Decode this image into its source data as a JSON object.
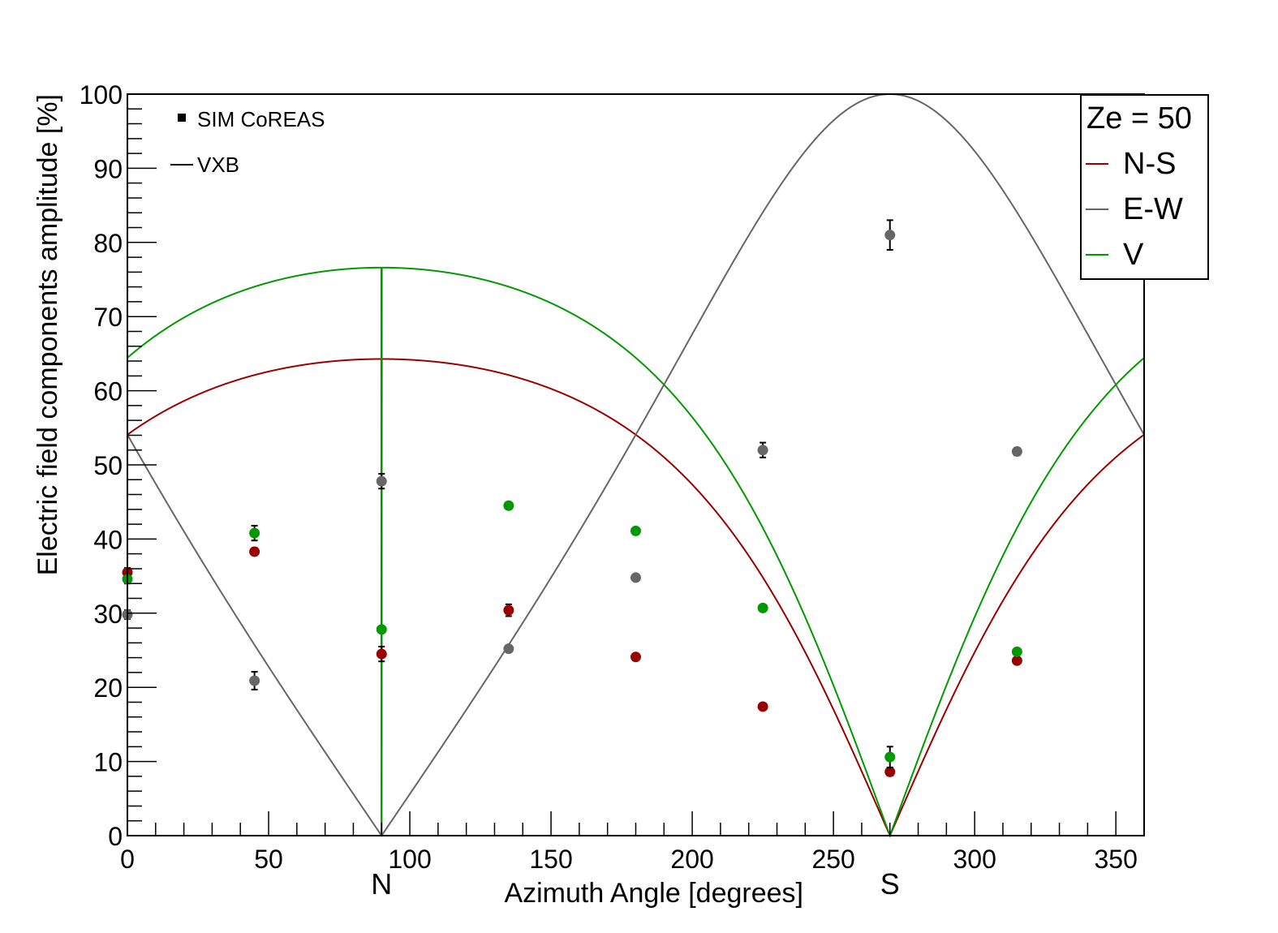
{
  "chart_data": {
    "type": "scatter",
    "xlabel": "Azimuth Angle [degrees]",
    "ylabel": "Electric field components amplitude [%]",
    "xlim": [
      0,
      360
    ],
    "ylim": [
      0,
      100
    ],
    "x_ticks": [
      0,
      50,
      100,
      150,
      200,
      250,
      300,
      350
    ],
    "y_ticks": [
      0,
      10,
      20,
      30,
      40,
      50,
      60,
      70,
      80,
      90,
      100
    ],
    "x_minor_step": 10,
    "y_minor_step": 2,
    "grid": false,
    "direction_labels": [
      {
        "x": 90,
        "label": "N"
      },
      {
        "x": 270,
        "label": "S"
      }
    ],
    "marker_legend": {
      "placement": "top-left",
      "points_label": "SIM CoREAS",
      "line_label": "VXB"
    },
    "legend": {
      "placement": "top-right",
      "title": "Ze = 50",
      "entries": [
        "N-S",
        "E-W",
        "V"
      ]
    },
    "colors": {
      "ns": "#990000",
      "ew": "#666666",
      "v": "#009900"
    },
    "model": {
      "zenith_deg": 50,
      "b_field_azimuth_deg": 90,
      "b_field_zenith_deg": 50,
      "note_hidden": ""
    },
    "series": [
      {
        "name": "N-S",
        "color_key": "ns",
        "points": [
          {
            "x": 0,
            "y": 35.5,
            "err": 0.6
          },
          {
            "x": 45,
            "y": 38.3,
            "err": 0.5
          },
          {
            "x": 90,
            "y": 24.5,
            "err": 1.0
          },
          {
            "x": 135,
            "y": 30.4,
            "err": 0.8
          },
          {
            "x": 180,
            "y": 24.1,
            "err": 0.4
          },
          {
            "x": 225,
            "y": 17.4,
            "err": 0.4
          },
          {
            "x": 270,
            "y": 8.6,
            "err": 0.5
          },
          {
            "x": 315,
            "y": 23.6,
            "err": 0.4
          }
        ]
      },
      {
        "name": "E-W",
        "color_key": "ew",
        "points": [
          {
            "x": 0,
            "y": 29.8,
            "err": 0.6
          },
          {
            "x": 45,
            "y": 20.9,
            "err": 1.2
          },
          {
            "x": 90,
            "y": 47.8,
            "err": 1.0
          },
          {
            "x": 135,
            "y": 25.2,
            "err": 0.4
          },
          {
            "x": 180,
            "y": 34.8,
            "err": 0.4
          },
          {
            "x": 225,
            "y": 52.0,
            "err": 1.0
          },
          {
            "x": 270,
            "y": 81.0,
            "err": 2.0
          },
          {
            "x": 315,
            "y": 51.8,
            "err": 0.5
          }
        ]
      },
      {
        "name": "V",
        "color_key": "v",
        "points": [
          {
            "x": 0,
            "y": 34.6,
            "err": 0.6
          },
          {
            "x": 45,
            "y": 40.8,
            "err": 1.0
          },
          {
            "x": 90,
            "y": 27.8,
            "err": 0.4
          },
          {
            "x": 135,
            "y": 44.5,
            "err": 0.4
          },
          {
            "x": 180,
            "y": 41.1,
            "err": 0.4
          },
          {
            "x": 225,
            "y": 30.7,
            "err": 0.4
          },
          {
            "x": 270,
            "y": 10.6,
            "err": 1.4
          },
          {
            "x": 315,
            "y": 24.8,
            "err": 0.4
          }
        ]
      }
    ]
  }
}
